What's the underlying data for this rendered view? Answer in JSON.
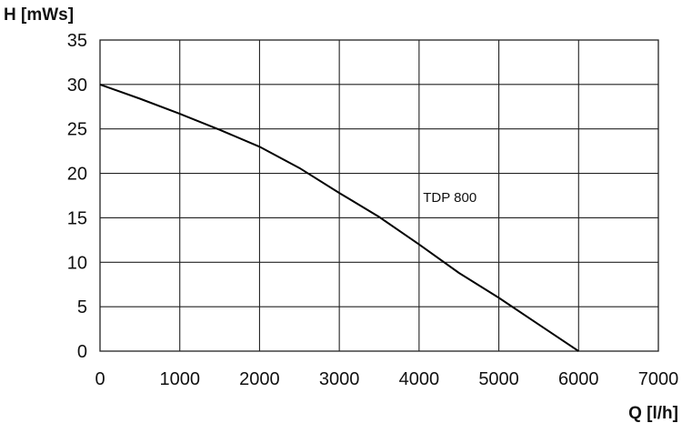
{
  "chart_data": {
    "type": "line",
    "title": "",
    "xlabel": "Q [l/h]",
    "ylabel": "H [mWs]",
    "xlim": [
      0,
      7000
    ],
    "ylim": [
      0,
      35
    ],
    "xticks": [
      "0",
      "1000",
      "2000",
      "3000",
      "4000",
      "5000",
      "6000",
      "7000"
    ],
    "yticks": [
      "0",
      "5",
      "10",
      "15",
      "20",
      "25",
      "30",
      "35"
    ],
    "grid": true,
    "legend": "none",
    "series": [
      {
        "name": "TDP 800",
        "x": [
          0,
          500,
          1000,
          1500,
          2000,
          2500,
          3000,
          3500,
          4000,
          4500,
          5000,
          5500,
          6000
        ],
        "y": [
          30,
          28.4,
          26.7,
          24.9,
          23.0,
          20.6,
          17.8,
          15.1,
          12.0,
          8.8,
          6.0,
          3.0,
          0
        ]
      }
    ]
  }
}
